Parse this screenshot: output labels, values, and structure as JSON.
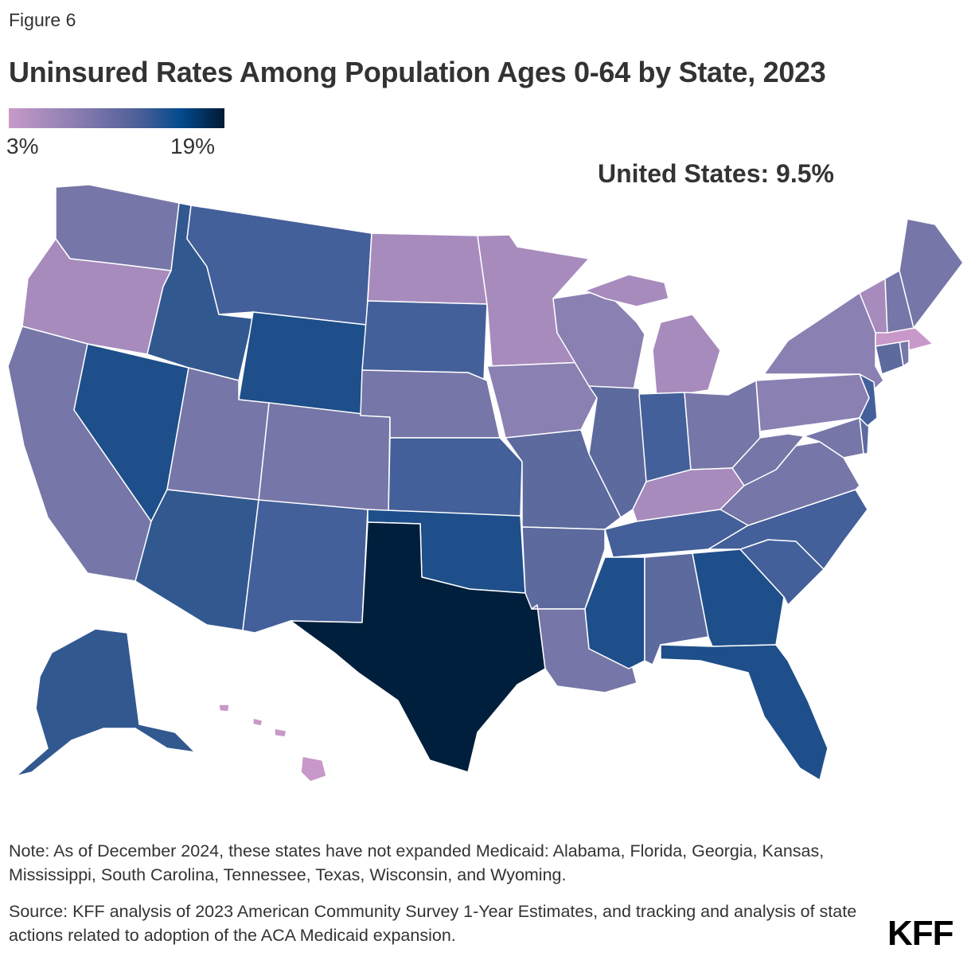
{
  "figure_label": "Figure 6",
  "title": "Uninsured Rates Among Population Ages 0-64 by State, 2023",
  "legend": {
    "min_label": "3%",
    "max_label": "19%",
    "gradient_colors": [
      "#c89ac8",
      "#8d7fb2",
      "#4d5f98",
      "#034a8d",
      "#001932"
    ]
  },
  "us_rate": "United States: 9.5%",
  "colors": {
    "lightest": "#c898c8",
    "light_purple": "#a78bbd",
    "lavender": "#8b80b2",
    "mid_purple": "#7676a8",
    "slate": "#5c6a9e",
    "mid_blue": "#44609a",
    "blue": "#325890",
    "dark_blue": "#1e4f8a",
    "darkest": "#001f3c",
    "background": "#ffffff"
  },
  "note": "Note: As of December 2024, these states have not expanded Medicaid: Alabama, Florida, Georgia, Kansas, Mississippi, South Carolina, Tennessee, Texas, Wisconsin, and Wyoming.",
  "source": "Source: KFF analysis of 2023 American Community Survey 1-Year Estimates, and tracking and analysis of state actions related to adoption of the ACA Medicaid expansion.",
  "logo": "KFF"
}
